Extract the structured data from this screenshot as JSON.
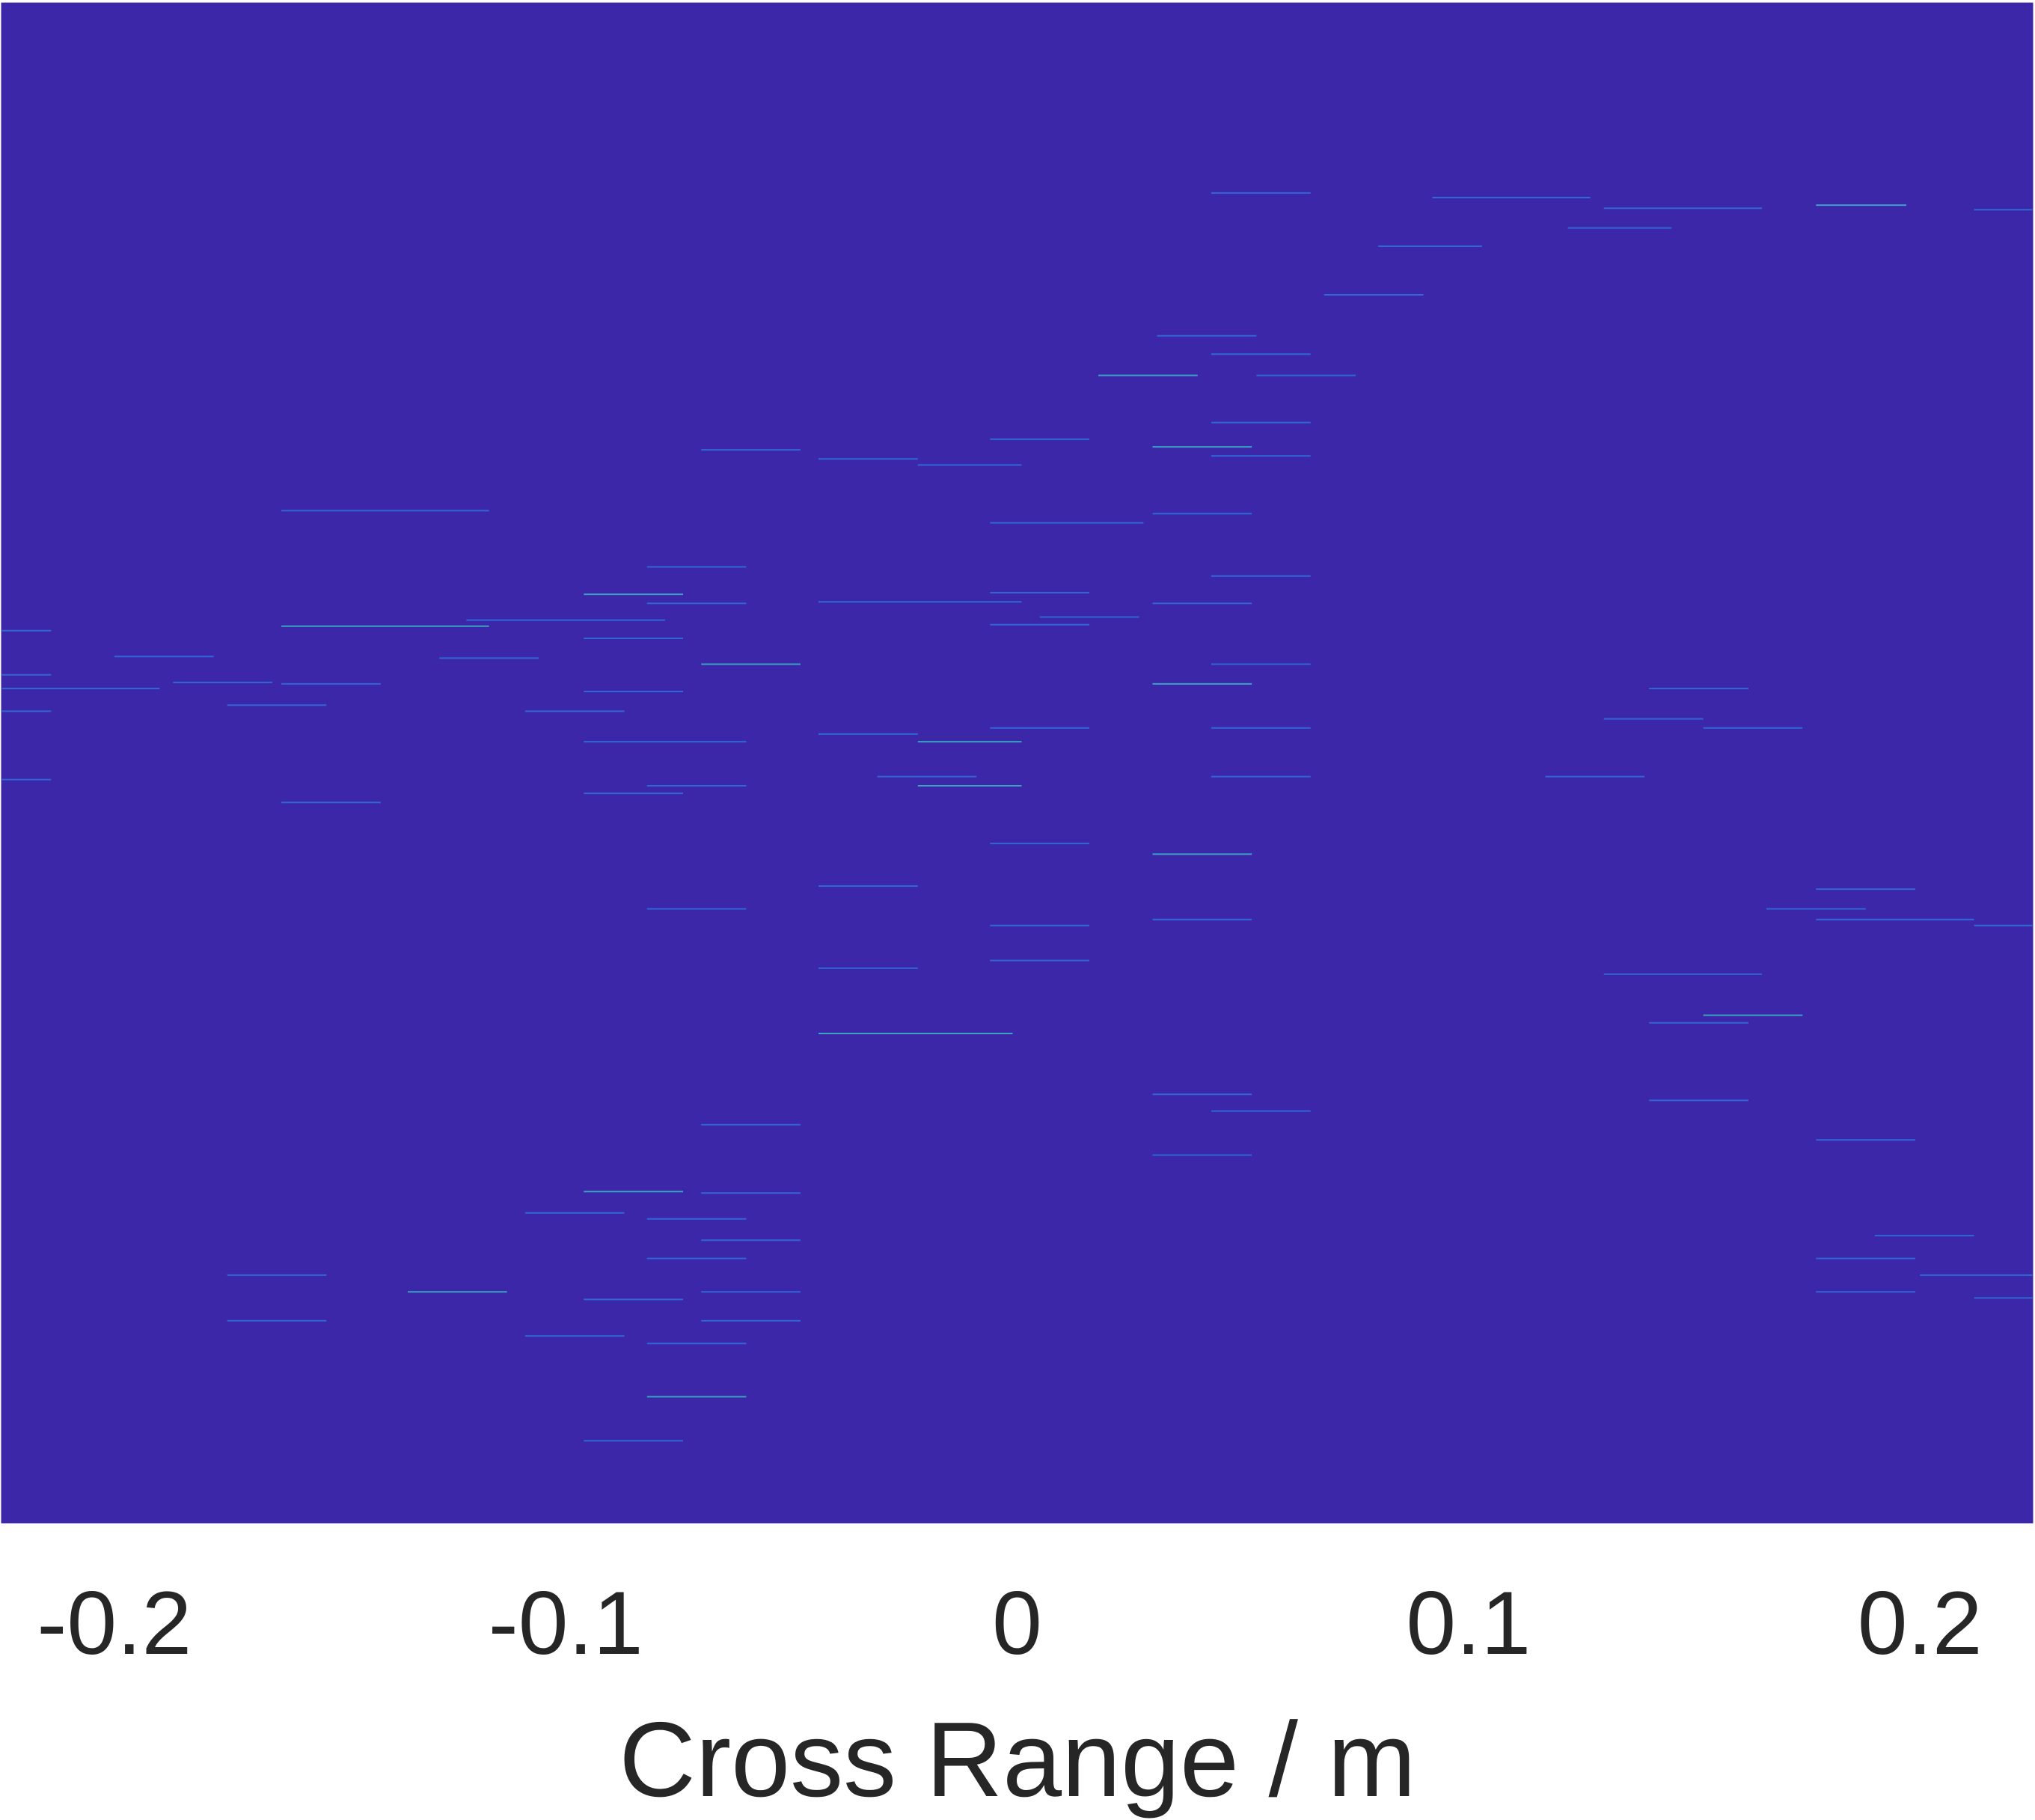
{
  "chart_data": {
    "type": "heatmap",
    "title": "",
    "xlabel": "Cross Range / m",
    "ylabel": "",
    "xlim": [
      -0.225,
      0.225
    ],
    "x_ticks": [
      -0.2,
      -0.1,
      0,
      0.1,
      0.2
    ],
    "x_tick_labels": [
      "-0.2",
      "-0.1",
      "0",
      "0.1",
      "0.2"
    ],
    "y_ticks_visible": false,
    "grid": false,
    "legend": "none",
    "background_value_color": "#3c27a8",
    "colormap": "parula",
    "streaks": [
      {
        "x0": 0.043,
        "x1": 0.065,
        "row": 0.125
      },
      {
        "x0": 0.092,
        "x1": 0.127,
        "row": 0.128
      },
      {
        "x0": 0.13,
        "x1": 0.165,
        "row": 0.135
      },
      {
        "x0": 0.177,
        "x1": 0.197,
        "row": 0.133
      },
      {
        "x0": 0.212,
        "x1": 0.225,
        "row": 0.136
      },
      {
        "x0": 0.122,
        "x1": 0.145,
        "row": 0.148
      },
      {
        "x0": 0.08,
        "x1": 0.103,
        "row": 0.16
      },
      {
        "x0": 0.068,
        "x1": 0.09,
        "row": 0.192
      },
      {
        "x0": 0.031,
        "x1": 0.053,
        "row": 0.219
      },
      {
        "x0": 0.043,
        "x1": 0.065,
        "row": 0.231
      },
      {
        "x0": 0.018,
        "x1": 0.04,
        "row": 0.245
      },
      {
        "x0": 0.053,
        "x1": 0.075,
        "row": 0.245
      },
      {
        "x0": 0.043,
        "x1": 0.065,
        "row": 0.276
      },
      {
        "x0": -0.006,
        "x1": 0.016,
        "row": 0.287
      },
      {
        "x0": -0.07,
        "x1": -0.048,
        "row": 0.294
      },
      {
        "x0": -0.044,
        "x1": -0.022,
        "row": 0.3
      },
      {
        "x0": -0.022,
        "x1": 0.001,
        "row": 0.304
      },
      {
        "x0": 0.03,
        "x1": 0.052,
        "row": 0.292
      },
      {
        "x0": 0.043,
        "x1": 0.065,
        "row": 0.298
      },
      {
        "x0": -0.163,
        "x1": -0.117,
        "row": 0.334
      },
      {
        "x0": -0.006,
        "x1": 0.028,
        "row": 0.342
      },
      {
        "x0": 0.03,
        "x1": 0.052,
        "row": 0.336
      },
      {
        "x0": -0.082,
        "x1": -0.06,
        "row": 0.371
      },
      {
        "x0": 0.043,
        "x1": 0.065,
        "row": 0.377
      },
      {
        "x0": -0.096,
        "x1": -0.074,
        "row": 0.389
      },
      {
        "x0": -0.082,
        "x1": -0.06,
        "row": 0.395
      },
      {
        "x0": -0.044,
        "x1": -0.022,
        "row": 0.394
      },
      {
        "x0": -0.006,
        "x1": 0.016,
        "row": 0.388
      },
      {
        "x0": -0.022,
        "x1": 0.001,
        "row": 0.394
      },
      {
        "x0": 0.03,
        "x1": 0.052,
        "row": 0.395
      },
      {
        "x0": 0.005,
        "x1": 0.027,
        "row": 0.404
      },
      {
        "x0": -0.163,
        "x1": -0.117,
        "row": 0.41
      },
      {
        "x0": -0.122,
        "x1": -0.078,
        "row": 0.406
      },
      {
        "x0": -0.096,
        "x1": -0.074,
        "row": 0.418
      },
      {
        "x0": -0.006,
        "x1": 0.016,
        "row": 0.409
      },
      {
        "x0": -0.225,
        "x1": -0.214,
        "row": 0.413
      },
      {
        "x0": -0.2,
        "x1": -0.178,
        "row": 0.43
      },
      {
        "x0": -0.128,
        "x1": -0.106,
        "row": 0.431
      },
      {
        "x0": -0.07,
        "x1": -0.048,
        "row": 0.435
      },
      {
        "x0": 0.043,
        "x1": 0.065,
        "row": 0.435
      },
      {
        "x0": -0.225,
        "x1": -0.214,
        "row": 0.442
      },
      {
        "x0": -0.225,
        "x1": -0.19,
        "row": 0.451
      },
      {
        "x0": -0.187,
        "x1": -0.165,
        "row": 0.447
      },
      {
        "x0": -0.163,
        "x1": -0.141,
        "row": 0.448
      },
      {
        "x0": -0.096,
        "x1": -0.074,
        "row": 0.453
      },
      {
        "x0": 0.03,
        "x1": 0.052,
        "row": 0.448
      },
      {
        "x0": -0.175,
        "x1": -0.153,
        "row": 0.462
      },
      {
        "x0": -0.109,
        "x1": -0.087,
        "row": 0.466
      },
      {
        "x0": -0.225,
        "x1": -0.214,
        "row": 0.466
      },
      {
        "x0": 0.043,
        "x1": 0.065,
        "row": 0.477
      },
      {
        "x0": -0.006,
        "x1": 0.016,
        "row": 0.477
      },
      {
        "x0": -0.044,
        "x1": -0.022,
        "row": 0.481
      },
      {
        "x0": -0.022,
        "x1": 0.001,
        "row": 0.486
      },
      {
        "x0": -0.096,
        "x1": -0.06,
        "row": 0.486
      },
      {
        "x0": 0.13,
        "x1": 0.152,
        "row": 0.471
      },
      {
        "x0": 0.14,
        "x1": 0.162,
        "row": 0.451
      },
      {
        "x0": 0.152,
        "x1": 0.174,
        "row": 0.477
      },
      {
        "x0": 0.117,
        "x1": 0.139,
        "row": 0.509
      },
      {
        "x0": -0.031,
        "x1": -0.009,
        "row": 0.509
      },
      {
        "x0": -0.022,
        "x1": 0.001,
        "row": 0.515
      },
      {
        "x0": -0.082,
        "x1": -0.06,
        "row": 0.515
      },
      {
        "x0": -0.096,
        "x1": -0.074,
        "row": 0.52
      },
      {
        "x0": -0.225,
        "x1": -0.214,
        "row": 0.511
      },
      {
        "x0": -0.163,
        "x1": -0.141,
        "row": 0.526
      },
      {
        "x0": 0.043,
        "x1": 0.065,
        "row": 0.509
      },
      {
        "x0": -0.006,
        "x1": 0.016,
        "row": 0.553
      },
      {
        "x0": 0.03,
        "x1": 0.052,
        "row": 0.56
      },
      {
        "x0": -0.044,
        "x1": -0.022,
        "row": 0.581
      },
      {
        "x0": -0.082,
        "x1": -0.06,
        "row": 0.596
      },
      {
        "x0": 0.03,
        "x1": 0.052,
        "row": 0.603
      },
      {
        "x0": -0.006,
        "x1": 0.016,
        "row": 0.607
      },
      {
        "x0": -0.006,
        "x1": 0.016,
        "row": 0.63
      },
      {
        "x0": -0.044,
        "x1": -0.022,
        "row": 0.635
      },
      {
        "x0": -0.044,
        "x1": -0.001,
        "row": 0.678
      },
      {
        "x0": 0.166,
        "x1": 0.188,
        "row": 0.596
      },
      {
        "x0": 0.177,
        "x1": 0.199,
        "row": 0.583
      },
      {
        "x0": 0.177,
        "x1": 0.212,
        "row": 0.603
      },
      {
        "x0": 0.212,
        "x1": 0.225,
        "row": 0.607
      },
      {
        "x0": 0.13,
        "x1": 0.165,
        "row": 0.639
      },
      {
        "x0": 0.14,
        "x1": 0.162,
        "row": 0.671
      },
      {
        "x0": 0.152,
        "x1": 0.174,
        "row": 0.666
      },
      {
        "x0": 0.14,
        "x1": 0.162,
        "row": 0.722
      },
      {
        "x0": 0.177,
        "x1": 0.199,
        "row": 0.748
      },
      {
        "x0": 0.03,
        "x1": 0.052,
        "row": 0.718
      },
      {
        "x0": 0.043,
        "x1": 0.065,
        "row": 0.729
      },
      {
        "x0": 0.03,
        "x1": 0.052,
        "row": 0.758
      },
      {
        "x0": -0.07,
        "x1": -0.048,
        "row": 0.738
      },
      {
        "x0": -0.096,
        "x1": -0.074,
        "row": 0.782
      },
      {
        "x0": -0.07,
        "x1": -0.048,
        "row": 0.783
      },
      {
        "x0": -0.109,
        "x1": -0.087,
        "row": 0.796
      },
      {
        "x0": -0.082,
        "x1": -0.06,
        "row": 0.8
      },
      {
        "x0": -0.07,
        "x1": -0.048,
        "row": 0.814
      },
      {
        "x0": -0.082,
        "x1": -0.06,
        "row": 0.826
      },
      {
        "x0": -0.175,
        "x1": -0.153,
        "row": 0.837
      },
      {
        "x0": -0.135,
        "x1": -0.113,
        "row": 0.848
      },
      {
        "x0": -0.096,
        "x1": -0.074,
        "row": 0.853
      },
      {
        "x0": -0.07,
        "x1": -0.048,
        "row": 0.848
      },
      {
        "x0": -0.07,
        "x1": -0.048,
        "row": 0.867
      },
      {
        "x0": -0.175,
        "x1": -0.153,
        "row": 0.867
      },
      {
        "x0": -0.109,
        "x1": -0.087,
        "row": 0.877
      },
      {
        "x0": -0.082,
        "x1": -0.06,
        "row": 0.882
      },
      {
        "x0": -0.082,
        "x1": -0.06,
        "row": 0.917
      },
      {
        "x0": -0.096,
        "x1": -0.074,
        "row": 0.946
      },
      {
        "x0": 0.19,
        "x1": 0.212,
        "row": 0.811
      },
      {
        "x0": 0.177,
        "x1": 0.199,
        "row": 0.826
      },
      {
        "x0": 0.2,
        "x1": 0.225,
        "row": 0.837
      },
      {
        "x0": 0.177,
        "x1": 0.199,
        "row": 0.848
      },
      {
        "x0": 0.212,
        "x1": 0.225,
        "row": 0.852
      }
    ]
  }
}
